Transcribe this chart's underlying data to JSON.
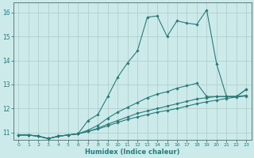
{
  "xlabel": "Humidex (Indice chaleur)",
  "xlim": [
    -0.5,
    23.5
  ],
  "ylim": [
    10.7,
    16.4
  ],
  "xticks": [
    0,
    1,
    2,
    3,
    4,
    5,
    6,
    7,
    8,
    9,
    10,
    11,
    12,
    13,
    14,
    15,
    16,
    17,
    18,
    19,
    20,
    21,
    22,
    23
  ],
  "yticks": [
    11,
    12,
    13,
    14,
    15,
    16
  ],
  "bg_color": "#cceaea",
  "line_color": "#2a7a7a",
  "grid_color": "#b0d0d0",
  "lines": [
    {
      "x": [
        0,
        1,
        2,
        3,
        4,
        5,
        6,
        7,
        8,
        9,
        10,
        11,
        12,
        13,
        14,
        15,
        16,
        17,
        18,
        19,
        20,
        21,
        22,
        23
      ],
      "y": [
        10.9,
        10.9,
        10.85,
        10.75,
        10.85,
        10.9,
        10.95,
        11.5,
        11.75,
        12.5,
        13.3,
        13.9,
        14.4,
        15.8,
        15.85,
        15.0,
        15.65,
        15.55,
        15.5,
        16.1,
        13.85,
        12.5,
        12.5,
        12.8
      ]
    },
    {
      "x": [
        0,
        1,
        2,
        3,
        4,
        5,
        6,
        7,
        8,
        9,
        10,
        11,
        12,
        13,
        14,
        15,
        16,
        17,
        18,
        19,
        20,
        21,
        22,
        23
      ],
      "y": [
        10.9,
        10.9,
        10.85,
        10.75,
        10.85,
        10.9,
        10.95,
        11.1,
        11.3,
        11.6,
        11.85,
        12.05,
        12.25,
        12.45,
        12.6,
        12.7,
        12.85,
        12.95,
        13.05,
        12.5,
        12.5,
        12.5,
        12.5,
        12.8
      ]
    },
    {
      "x": [
        0,
        1,
        2,
        3,
        4,
        5,
        6,
        7,
        8,
        9,
        10,
        11,
        12,
        13,
        14,
        15,
        16,
        17,
        18,
        19,
        20,
        21,
        22,
        23
      ],
      "y": [
        10.9,
        10.9,
        10.85,
        10.75,
        10.85,
        10.9,
        10.95,
        11.05,
        11.18,
        11.35,
        11.5,
        11.65,
        11.8,
        11.9,
        12.0,
        12.1,
        12.2,
        12.3,
        12.4,
        12.45,
        12.5,
        12.5,
        12.5,
        12.55
      ]
    },
    {
      "x": [
        0,
        1,
        2,
        3,
        4,
        5,
        6,
        7,
        8,
        9,
        10,
        11,
        12,
        13,
        14,
        15,
        16,
        17,
        18,
        19,
        20,
        21,
        22,
        23
      ],
      "y": [
        10.9,
        10.9,
        10.85,
        10.75,
        10.85,
        10.9,
        10.95,
        11.05,
        11.15,
        11.28,
        11.42,
        11.55,
        11.65,
        11.75,
        11.85,
        11.92,
        12.0,
        12.1,
        12.2,
        12.28,
        12.35,
        12.42,
        12.48,
        12.52
      ]
    }
  ]
}
